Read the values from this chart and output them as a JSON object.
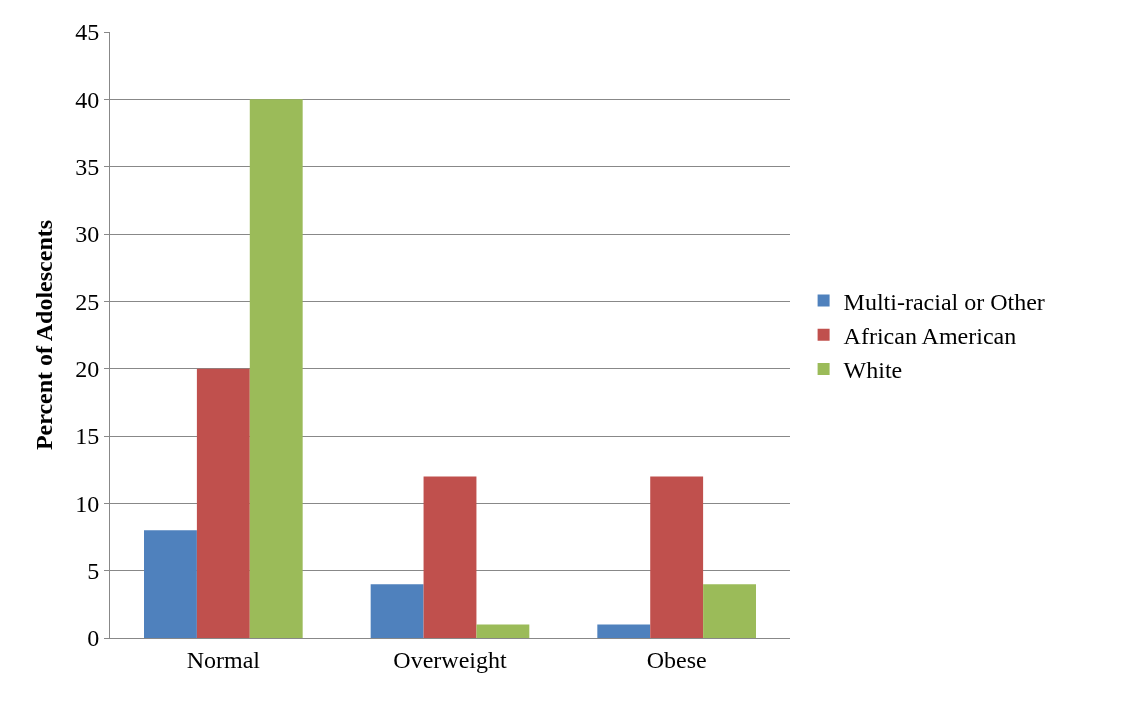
{
  "chart_data": {
    "type": "bar",
    "ylabel": "Percent of Adolescents",
    "categories": [
      "Normal",
      "Overweight",
      "Obese"
    ],
    "series": [
      {
        "name": "Multi-racial or Other",
        "color": "#4f81bd",
        "values": [
          8,
          4,
          1
        ]
      },
      {
        "name": "African American",
        "color": "#c0504d",
        "values": [
          20,
          12,
          12
        ]
      },
      {
        "name": "White",
        "color": "#9bbb59",
        "values": [
          40,
          1,
          4
        ]
      }
    ],
    "ylim": [
      0,
      45
    ],
    "yticks": [
      0,
      5,
      10,
      15,
      20,
      25,
      30,
      35,
      40,
      45
    ],
    "grid": "y",
    "legend": "right"
  }
}
